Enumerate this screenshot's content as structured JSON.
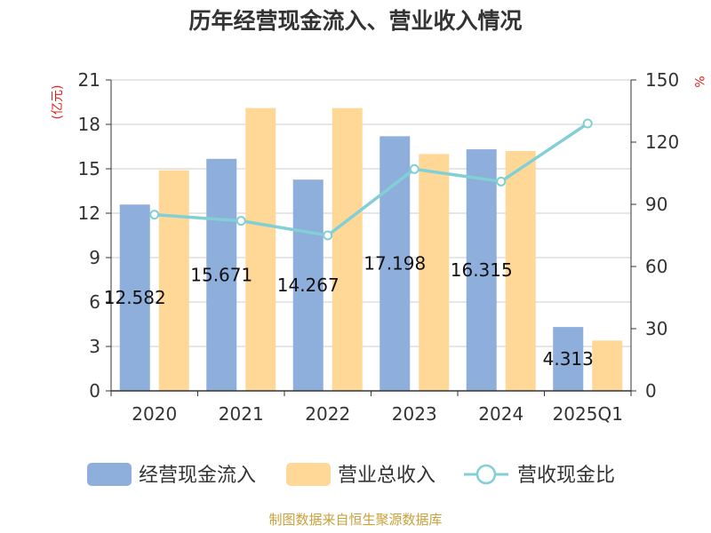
{
  "chart_data": {
    "type": "bar",
    "title": "历年经营现金流入、营业收入情况",
    "categories": [
      "2020",
      "2021",
      "2022",
      "2023",
      "2024",
      "2025Q1"
    ],
    "series": [
      {
        "name": "经营现金流入",
        "type": "bar",
        "axis": "left",
        "color": "#8eaedb",
        "values": [
          12.582,
          15.671,
          14.267,
          17.198,
          16.315,
          4.313
        ],
        "labels": [
          "12.582",
          "15.671",
          "14.267",
          "17.198",
          "16.315",
          "4.313"
        ]
      },
      {
        "name": "营业总收入",
        "type": "bar",
        "axis": "left",
        "color": "#ffd898",
        "values": [
          14.9,
          19.1,
          19.1,
          16.0,
          16.2,
          3.4
        ]
      },
      {
        "name": "营收现金比",
        "type": "line",
        "axis": "right",
        "color": "#82cfd5",
        "values": [
          85,
          82,
          75,
          107,
          101,
          129
        ]
      }
    ],
    "y_left": {
      "unit": "(亿元)",
      "min": 0,
      "max": 21,
      "ticks": [
        0,
        3,
        6,
        9,
        12,
        15,
        18,
        21
      ]
    },
    "y_right": {
      "unit": "%",
      "min": 0,
      "max": 150,
      "ticks": [
        0,
        30,
        60,
        90,
        120,
        150
      ]
    },
    "grid": true,
    "legend_position": "bottom"
  },
  "source_text": "制图数据来自恒生聚源数据库"
}
